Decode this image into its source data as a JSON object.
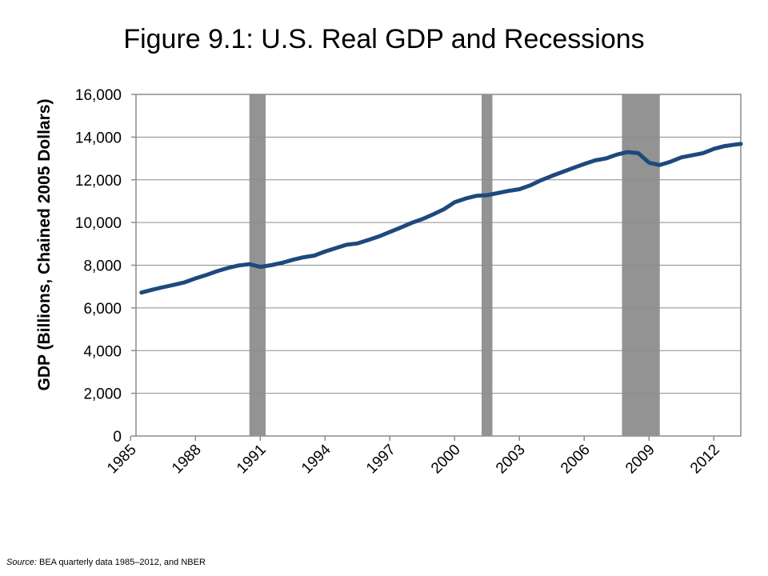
{
  "chart_data": {
    "type": "line",
    "title": "Figure 9.1: U.S. Real GDP and Recessions",
    "ylabel": "GDP (Billions, Chained 2005 Dollars)",
    "xlabel": "",
    "xlim": [
      1985.25,
      2013.25
    ],
    "ylim": [
      0,
      16000
    ],
    "y_ticks": [
      0,
      2000,
      4000,
      6000,
      8000,
      10000,
      12000,
      14000,
      16000
    ],
    "y_tick_labels": [
      "0",
      "2,000",
      "4,000",
      "6,000",
      "8,000",
      "10,000",
      "12,000",
      "14,000",
      "16,000"
    ],
    "x_ticks": [
      1985,
      1988,
      1991,
      1994,
      1997,
      2000,
      2003,
      2006,
      2009,
      2012
    ],
    "x_tick_labels": [
      "1985",
      "1988",
      "1991",
      "1994",
      "1997",
      "2000",
      "2003",
      "2006",
      "2009",
      "2012"
    ],
    "grid": true,
    "recessions": [
      [
        1990.5,
        1991.25
      ],
      [
        2001.25,
        2001.75
      ],
      [
        2007.75,
        2009.5
      ]
    ],
    "series": [
      {
        "color": "#1f497d",
        "x": [
          1985.5,
          1986,
          1986.5,
          1987,
          1987.5,
          1988,
          1988.5,
          1989,
          1989.5,
          1990,
          1990.5,
          1991,
          1991.5,
          1992,
          1992.5,
          1993,
          1993.5,
          1994,
          1994.5,
          1995,
          1995.5,
          1996,
          1996.5,
          1997,
          1997.5,
          1998,
          1998.5,
          1999,
          1999.5,
          2000,
          2000.5,
          2001,
          2001.5,
          2002,
          2002.5,
          2003,
          2003.5,
          2004,
          2004.5,
          2005,
          2005.5,
          2006,
          2006.5,
          2007,
          2007.5,
          2008,
          2008.5,
          2009,
          2009.5,
          2010,
          2010.5,
          2011,
          2011.5,
          2012,
          2012.5,
          2013,
          2013.25
        ],
        "values": [
          6720,
          6850,
          6970,
          7080,
          7200,
          7380,
          7540,
          7720,
          7870,
          7990,
          8050,
          7920,
          8000,
          8110,
          8250,
          8370,
          8450,
          8640,
          8800,
          8960,
          9020,
          9180,
          9350,
          9560,
          9760,
          9980,
          10160,
          10380,
          10620,
          10950,
          11120,
          11250,
          11280,
          11380,
          11480,
          11560,
          11740,
          11980,
          12180,
          12370,
          12560,
          12740,
          12910,
          13000,
          13180,
          13300,
          13250,
          12800,
          12690,
          12850,
          13050,
          13150,
          13250,
          13450,
          13580,
          13650,
          13680
        ]
      }
    ]
  },
  "source": {
    "label": "Source:",
    "text": " BEA quarterly data 1985–2012, and NBER"
  },
  "colors": {
    "line": "#1f497d",
    "recession_band": "#939393",
    "grid": "#8c8c8c",
    "axis": "#8c8c8c"
  }
}
